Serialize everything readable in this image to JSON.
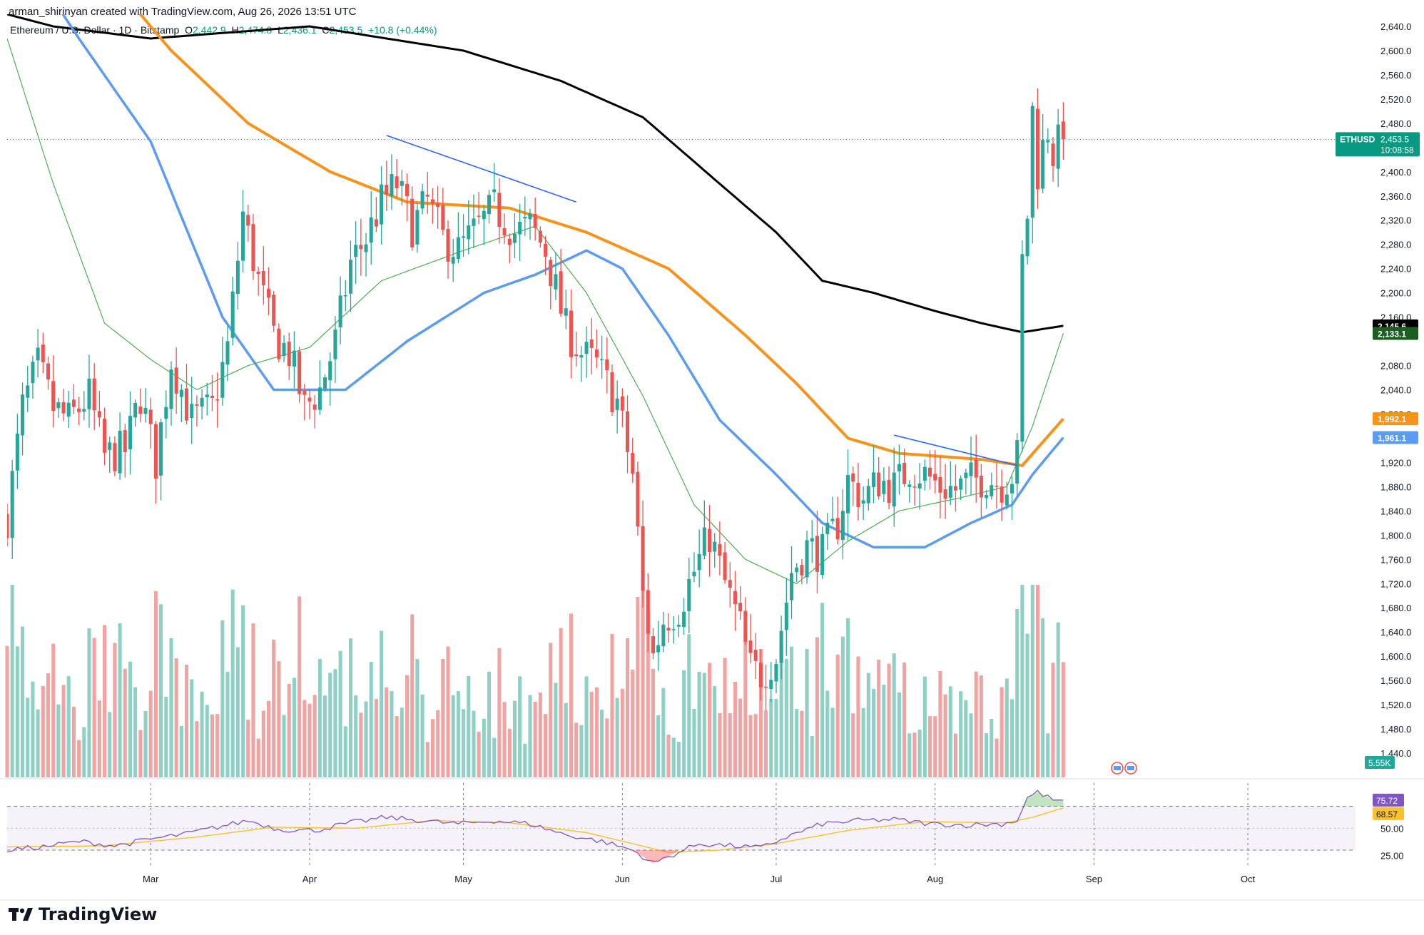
{
  "header": {
    "creator_text": "arman_shirinyan created with TradingView.com, Aug 26, 2026 13:51 UTC",
    "symbol": "Ethereum / U.S. Dollar · 1D · Bitstamp",
    "o_label": "O",
    "o_value": "2,442.9",
    "h_label": "H",
    "h_value": "2,474.8",
    "l_label": "L",
    "l_value": "2,436.1",
    "c_label": "C",
    "c_value": "2,453.5",
    "change": "+10.8 (+0.44%)"
  },
  "brand": {
    "name": "TradingView"
  },
  "colors": {
    "up": "#26a69a",
    "down": "#ef5350",
    "vol_up": "#8fd0c4",
    "vol_down": "#f2a3a1",
    "ma200": "#000000",
    "ma100": "#f7931a",
    "ma50": "#5b9cf0",
    "ma20": "#4caf50",
    "trendline": "#2962ff",
    "rsi": "#7e57c2",
    "rsi_ma": "#fbc02d"
  },
  "chart_data": {
    "type": "candlestick",
    "price_axis": {
      "range": [
        1400,
        2660
      ],
      "ticks": [
        "2,640.0",
        "2,600.0",
        "2,560.0",
        "2,520.0",
        "2,480.0",
        "2,400.0",
        "2,360.0",
        "2,320.0",
        "2,280.0",
        "2,240.0",
        "2,200.0",
        "2,160.0",
        "2,080.0",
        "2,040.0",
        "2,000.0",
        "1,920.0",
        "1,880.0",
        "1,840.0",
        "1,800.0",
        "1,760.0",
        "1,720.0",
        "1,680.0",
        "1,640.0",
        "1,600.0",
        "1,560.0",
        "1,520.0",
        "1,480.0",
        "1,440.0"
      ]
    },
    "x_axis": {
      "range": [
        "2026-02-01",
        "2026-10-22"
      ],
      "tick_labels": [
        {
          "label": "Mar",
          "date": "2026-03-01"
        },
        {
          "label": "Apr",
          "date": "2026-04-01"
        },
        {
          "label": "May",
          "date": "2026-05-01"
        },
        {
          "label": "Jun",
          "date": "2026-06-01"
        },
        {
          "label": "Jul",
          "date": "2026-07-01"
        },
        {
          "label": "Aug",
          "date": "2026-08-01"
        },
        {
          "label": "Sep",
          "date": "2026-09-01"
        },
        {
          "label": "Oct",
          "date": "2026-10-01"
        }
      ]
    },
    "close_keypoints": [
      [
        "2026-02-01",
        1830
      ],
      [
        "2026-02-04",
        2010
      ],
      [
        "2026-02-07",
        2080
      ],
      [
        "2026-02-10",
        2010
      ],
      [
        "2026-02-13",
        1990
      ],
      [
        "2026-02-17",
        2030
      ],
      [
        "2026-02-20",
        1930
      ],
      [
        "2026-02-24",
        1940
      ],
      [
        "2026-02-27",
        2030
      ],
      [
        "2026-03-02",
        1920
      ],
      [
        "2026-03-05",
        2090
      ],
      [
        "2026-03-09",
        1990
      ],
      [
        "2026-03-13",
        2010
      ],
      [
        "2026-03-16",
        2110
      ],
      [
        "2026-03-19",
        2330
      ],
      [
        "2026-03-22",
        2220
      ],
      [
        "2026-03-25",
        2130
      ],
      [
        "2026-03-28",
        2100
      ],
      [
        "2026-03-31",
        2010
      ],
      [
        "2026-04-03",
        2040
      ],
      [
        "2026-04-06",
        2120
      ],
      [
        "2026-04-09",
        2250
      ],
      [
        "2026-04-12",
        2290
      ],
      [
        "2026-04-15",
        2350
      ],
      [
        "2026-04-18",
        2380
      ],
      [
        "2026-04-21",
        2310
      ],
      [
        "2026-04-24",
        2350
      ],
      [
        "2026-04-27",
        2290
      ],
      [
        "2026-04-30",
        2270
      ],
      [
        "2026-05-04",
        2310
      ],
      [
        "2026-05-07",
        2340
      ],
      [
        "2026-05-11",
        2300
      ],
      [
        "2026-05-14",
        2310
      ],
      [
        "2026-05-17",
        2270
      ],
      [
        "2026-05-21",
        2140
      ],
      [
        "2026-05-24",
        2100
      ],
      [
        "2026-05-27",
        2080
      ],
      [
        "2026-05-31",
        2020
      ],
      [
        "2026-06-03",
        1900
      ],
      [
        "2026-06-05",
        1700
      ],
      [
        "2026-06-07",
        1600
      ],
      [
        "2026-06-09",
        1660
      ],
      [
        "2026-06-12",
        1680
      ],
      [
        "2026-06-15",
        1740
      ],
      [
        "2026-06-18",
        1800
      ],
      [
        "2026-06-21",
        1720
      ],
      [
        "2026-06-24",
        1650
      ],
      [
        "2026-06-26",
        1580
      ],
      [
        "2026-06-28",
        1570
      ],
      [
        "2026-07-01",
        1600
      ],
      [
        "2026-07-04",
        1740
      ],
      [
        "2026-07-07",
        1780
      ],
      [
        "2026-07-10",
        1770
      ],
      [
        "2026-07-13",
        1820
      ],
      [
        "2026-07-15",
        1890
      ],
      [
        "2026-07-18",
        1860
      ],
      [
        "2026-07-21",
        1890
      ],
      [
        "2026-07-24",
        1880
      ],
      [
        "2026-07-27",
        1910
      ],
      [
        "2026-07-30",
        1900
      ],
      [
        "2026-08-02",
        1880
      ],
      [
        "2026-08-05",
        1875
      ],
      [
        "2026-08-08",
        1890
      ],
      [
        "2026-08-11",
        1895
      ],
      [
        "2026-08-14",
        1885
      ],
      [
        "2026-08-16",
        1900
      ],
      [
        "2026-08-17",
        1930
      ],
      [
        "2026-08-18",
        2250
      ],
      [
        "2026-08-19",
        2330
      ],
      [
        "2026-08-20",
        2500
      ],
      [
        "2026-08-21",
        2400
      ],
      [
        "2026-08-22",
        2440
      ],
      [
        "2026-08-23",
        2470
      ],
      [
        "2026-08-24",
        2430
      ],
      [
        "2026-08-25",
        2445
      ],
      [
        "2026-08-26",
        2453.5
      ]
    ],
    "moving_averages": [
      {
        "points": [
          [
            "2026-02-01",
            2660
          ],
          [
            "2026-02-10",
            2640
          ],
          [
            "2026-03-01",
            2620
          ],
          [
            "2026-04-01",
            2640
          ],
          [
            "2026-05-01",
            2600
          ],
          [
            "2026-05-20",
            2550
          ],
          [
            "2026-06-05",
            2490
          ],
          [
            "2026-06-20",
            2380
          ],
          [
            "2026-07-01",
            2300
          ],
          [
            "2026-07-10",
            2220
          ],
          [
            "2026-07-20",
            2200
          ],
          [
            "2026-08-01",
            2170
          ],
          [
            "2026-08-10",
            2150
          ],
          [
            "2026-08-18",
            2135
          ],
          [
            "2026-08-26",
            2145.6
          ]
        ]
      },
      {
        "points": [
          [
            "2026-02-01",
            2900
          ],
          [
            "2026-02-25",
            2680
          ],
          [
            "2026-03-05",
            2600
          ],
          [
            "2026-03-20",
            2480
          ],
          [
            "2026-04-05",
            2400
          ],
          [
            "2026-04-20",
            2350
          ],
          [
            "2026-05-10",
            2340
          ],
          [
            "2026-05-25",
            2300
          ],
          [
            "2026-06-10",
            2240
          ],
          [
            "2026-06-25",
            2130
          ],
          [
            "2026-07-05",
            2050
          ],
          [
            "2026-07-15",
            1960
          ],
          [
            "2026-07-25",
            1935
          ],
          [
            "2026-08-10",
            1925
          ],
          [
            "2026-08-18",
            1915
          ],
          [
            "2026-08-26",
            1992.1
          ]
        ]
      },
      {
        "points": [
          [
            "2026-02-01",
            2800
          ],
          [
            "2026-02-15",
            2620
          ],
          [
            "2026-03-01",
            2450
          ],
          [
            "2026-03-15",
            2160
          ],
          [
            "2026-03-25",
            2040
          ],
          [
            "2026-04-08",
            2040
          ],
          [
            "2026-04-20",
            2120
          ],
          [
            "2026-05-05",
            2200
          ],
          [
            "2026-05-15",
            2230
          ],
          [
            "2026-05-25",
            2270
          ],
          [
            "2026-06-01",
            2240
          ],
          [
            "2026-06-10",
            2130
          ],
          [
            "2026-06-20",
            1990
          ],
          [
            "2026-07-01",
            1900
          ],
          [
            "2026-07-10",
            1820
          ],
          [
            "2026-07-20",
            1780
          ],
          [
            "2026-07-30",
            1780
          ],
          [
            "2026-08-08",
            1820
          ],
          [
            "2026-08-16",
            1850
          ],
          [
            "2026-08-20",
            1900
          ],
          [
            "2026-08-26",
            1961.1
          ]
        ]
      },
      {
        "points": [
          [
            "2026-02-01",
            2620
          ],
          [
            "2026-02-10",
            2380
          ],
          [
            "2026-02-20",
            2150
          ],
          [
            "2026-03-01",
            2090
          ],
          [
            "2026-03-10",
            2040
          ],
          [
            "2026-03-20",
            2080
          ],
          [
            "2026-04-01",
            2110
          ],
          [
            "2026-04-15",
            2220
          ],
          [
            "2026-05-01",
            2270
          ],
          [
            "2026-05-15",
            2310
          ],
          [
            "2026-05-25",
            2200
          ],
          [
            "2026-06-05",
            2030
          ],
          [
            "2026-06-15",
            1850
          ],
          [
            "2026-06-25",
            1760
          ],
          [
            "2026-07-05",
            1720
          ],
          [
            "2026-07-15",
            1790
          ],
          [
            "2026-07-25",
            1840
          ],
          [
            "2026-08-05",
            1860
          ],
          [
            "2026-08-15",
            1880
          ],
          [
            "2026-08-20",
            1980
          ],
          [
            "2026-08-26",
            2133.1
          ]
        ]
      }
    ],
    "trendlines": [
      {
        "from": [
          "2026-04-16",
          2460
        ],
        "to": [
          "2026-05-23",
          2350
        ]
      },
      {
        "from": [
          "2026-07-24",
          1965
        ],
        "to": [
          "2026-08-17",
          1915
        ]
      }
    ],
    "last_price_line": 2453.5,
    "price_labels": [
      {
        "text": "ETHUSD",
        "value": 2453.5,
        "sub": "10:08:58",
        "color": "#089981"
      },
      {
        "text": "2,145.6",
        "value": 2145.6,
        "color": "#000000"
      },
      {
        "text": "2,133.1",
        "value": 2133.1,
        "color": "#1b5e20"
      },
      {
        "text": "1,992.1",
        "value": 1992.1,
        "color": "#f7931a"
      },
      {
        "text": "1,961.1",
        "value": 1961.1,
        "color": "#5b9cf0"
      }
    ],
    "volume": {
      "last_label": "5.55K"
    },
    "rsi": {
      "range": [
        15,
        90
      ],
      "upper": 70,
      "mid": 50,
      "lower": 30,
      "ticks": [
        "50.00",
        "25.00"
      ],
      "value_label": "75.72",
      "ma_label": "68.57",
      "keypoints": [
        [
          "2026-02-01",
          30
        ],
        [
          "2026-02-08",
          33
        ],
        [
          "2026-02-15",
          38
        ],
        [
          "2026-02-22",
          34
        ],
        [
          "2026-03-01",
          40
        ],
        [
          "2026-03-08",
          45
        ],
        [
          "2026-03-15",
          52
        ],
        [
          "2026-03-20",
          57
        ],
        [
          "2026-03-26",
          49
        ],
        [
          "2026-04-02",
          48
        ],
        [
          "2026-04-09",
          55
        ],
        [
          "2026-04-16",
          60
        ],
        [
          "2026-04-23",
          57
        ],
        [
          "2026-04-30",
          54
        ],
        [
          "2026-05-07",
          57
        ],
        [
          "2026-05-14",
          54
        ],
        [
          "2026-05-21",
          44
        ],
        [
          "2026-05-28",
          38
        ],
        [
          "2026-06-03",
          30
        ],
        [
          "2026-06-07",
          18
        ],
        [
          "2026-06-10",
          24
        ],
        [
          "2026-06-16",
          36
        ],
        [
          "2026-06-22",
          34
        ],
        [
          "2026-06-28",
          32
        ],
        [
          "2026-07-03",
          42
        ],
        [
          "2026-07-10",
          54
        ],
        [
          "2026-07-17",
          57
        ],
        [
          "2026-07-24",
          58
        ],
        [
          "2026-07-31",
          54
        ],
        [
          "2026-08-07",
          53
        ],
        [
          "2026-08-14",
          54
        ],
        [
          "2026-08-17",
          57
        ],
        [
          "2026-08-19",
          78
        ],
        [
          "2026-08-21",
          83
        ],
        [
          "2026-08-24",
          76
        ],
        [
          "2026-08-26",
          75.72
        ]
      ],
      "ma_keypoints": [
        [
          "2026-02-01",
          33
        ],
        [
          "2026-02-20",
          34
        ],
        [
          "2026-03-10",
          42
        ],
        [
          "2026-03-25",
          51
        ],
        [
          "2026-04-10",
          50
        ],
        [
          "2026-04-25",
          57
        ],
        [
          "2026-05-10",
          55
        ],
        [
          "2026-05-25",
          46
        ],
        [
          "2026-06-10",
          28
        ],
        [
          "2026-06-20",
          30
        ],
        [
          "2026-07-01",
          36
        ],
        [
          "2026-07-15",
          48
        ],
        [
          "2026-07-30",
          56
        ],
        [
          "2026-08-15",
          55
        ],
        [
          "2026-08-20",
          60
        ],
        [
          "2026-08-26",
          68.57
        ]
      ]
    }
  }
}
